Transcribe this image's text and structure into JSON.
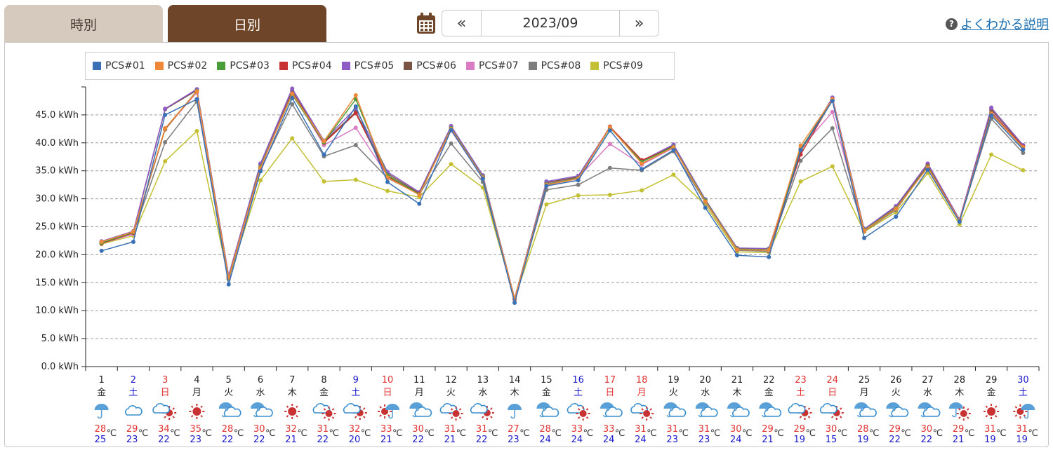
{
  "tabs": {
    "hourly": "時別",
    "daily": "日別"
  },
  "date_nav": {
    "prev": "«",
    "next": "»",
    "current": "2023/09"
  },
  "help": {
    "icon": "?",
    "label": "よくわかる説明"
  },
  "colors": {
    "accent_active_tab": "#6f4529",
    "inactive_tab": "#d6c9bd",
    "weekday": "#222222",
    "saturday": "#1a1acc",
    "holiday": "#e03030",
    "temp_high": "#e03030",
    "temp_low": "#1a1acc"
  },
  "chart_data": {
    "type": "line",
    "title": "",
    "xlabel": "",
    "ylabel": "",
    "ylim": [
      0,
      50
    ],
    "ytick_values": [
      0,
      5,
      10,
      15,
      20,
      25,
      30,
      35,
      40,
      45
    ],
    "ytick_labels": [
      "0.0 kWh",
      "5.0 kWh",
      "10.0 kWh",
      "15.0 kWh",
      "20.0 kWh",
      "25.0 kWh",
      "30.0 kWh",
      "35.0 kWh",
      "40.0 kWh",
      "45.0 kWh"
    ],
    "grid": true,
    "legend_position": "top-left",
    "categories": [
      "1",
      "2",
      "3",
      "4",
      "5",
      "6",
      "7",
      "8",
      "9",
      "10",
      "11",
      "12",
      "13",
      "14",
      "15",
      "16",
      "17",
      "18",
      "19",
      "20",
      "21",
      "22",
      "23",
      "24",
      "25",
      "26",
      "27",
      "28",
      "29",
      "30"
    ],
    "weekdays": [
      "金",
      "土",
      "日",
      "月",
      "火",
      "水",
      "木",
      "金",
      "土",
      "日",
      "月",
      "火",
      "水",
      "木",
      "金",
      "土",
      "日",
      "月",
      "火",
      "水",
      "木",
      "金",
      "土",
      "日",
      "月",
      "火",
      "水",
      "木",
      "金",
      "土"
    ],
    "day_types": [
      "w",
      "s",
      "h",
      "w",
      "w",
      "w",
      "w",
      "w",
      "s",
      "h",
      "w",
      "w",
      "w",
      "w",
      "w",
      "s",
      "h",
      "h",
      "w",
      "w",
      "w",
      "w",
      "h",
      "h",
      "w",
      "w",
      "w",
      "w",
      "w",
      "s"
    ],
    "weather": [
      "rain",
      "cloud",
      "sun-cloud",
      "sun",
      "cloud-rain",
      "cloud-rain",
      "sun",
      "cloud-sun",
      "sun-cloud",
      "sun-rain",
      "cloud-rain",
      "cloud-sun",
      "sun-cloud",
      "rain",
      "cloud-rain",
      "cloud-sun",
      "cloud-rain",
      "cloud-sun",
      "cloud-rain",
      "cloud-rain",
      "cloud-rain",
      "cloud-rain",
      "sun-cloud",
      "sun-cloud",
      "cloud-rain",
      "cloud-rain",
      "cloud-rain",
      "rain-sun",
      "sun",
      "sun-rain"
    ],
    "temp_high": [
      28,
      29,
      34,
      35,
      28,
      30,
      32,
      31,
      32,
      33,
      30,
      31,
      31,
      27,
      28,
      33,
      33,
      31,
      31,
      31,
      30,
      29,
      29,
      30,
      28,
      29,
      30,
      29,
      31,
      31
    ],
    "temp_low": [
      25,
      23,
      22,
      23,
      22,
      22,
      21,
      22,
      20,
      21,
      22,
      21,
      22,
      23,
      24,
      24,
      24,
      24,
      23,
      23,
      24,
      21,
      19,
      15,
      19,
      22,
      22,
      21,
      19,
      19
    ],
    "temp_unit": "℃",
    "series": [
      {
        "name": "PCS#01",
        "color": "#3a70b5",
        "values": [
          20.7,
          22.3,
          45.0,
          47.8,
          14.7,
          34.9,
          48.0,
          37.9,
          46.5,
          33.0,
          29.1,
          42.3,
          33.6,
          11.4,
          32.3,
          33.3,
          42.2,
          35.3,
          38.7,
          28.4,
          19.9,
          19.6,
          38.7,
          47.5,
          23.0,
          26.8,
          35.2,
          25.9,
          44.9,
          38.8
        ]
      },
      {
        "name": "PCS#02",
        "color": "#f0883a",
        "values": [
          22.3,
          24.1,
          42.6,
          49.2,
          15.9,
          35.5,
          48.8,
          40.3,
          48.5,
          33.8,
          30.7,
          42.5,
          33.8,
          12.1,
          32.5,
          33.6,
          42.8,
          36.3,
          39.2,
          29.5,
          20.9,
          20.8,
          39.5,
          47.8,
          24.3,
          28.2,
          35.6,
          26.1,
          45.2,
          39.2
        ]
      },
      {
        "name": "PCS#03",
        "color": "#4a9e3a",
        "values": [
          22.1,
          24.0,
          42.5,
          49.3,
          15.8,
          35.7,
          48.6,
          40.1,
          47.8,
          34.2,
          30.8,
          42.6,
          33.9,
          12.1,
          32.6,
          33.7,
          42.7,
          36.6,
          39.3,
          29.7,
          21.0,
          20.9,
          38.9,
          47.6,
          24.4,
          28.3,
          35.8,
          26.0,
          45.3,
          39.1
        ]
      },
      {
        "name": "PCS#04",
        "color": "#c83232",
        "values": [
          22.0,
          23.9,
          42.4,
          49.2,
          15.8,
          35.7,
          48.7,
          40.0,
          45.3,
          34.0,
          30.9,
          42.5,
          33.8,
          12.1,
          32.5,
          33.6,
          42.9,
          36.9,
          39.2,
          29.6,
          21.0,
          20.9,
          37.9,
          47.7,
          24.3,
          28.3,
          35.9,
          26.1,
          45.4,
          39.3
        ]
      },
      {
        "name": "PCS#05",
        "color": "#8e5cc4",
        "values": [
          22.4,
          24.2,
          46.1,
          49.6,
          16.3,
          36.3,
          49.7,
          40.4,
          46.2,
          34.8,
          31.2,
          43.0,
          34.2,
          12.2,
          33.1,
          34.1,
          42.8,
          36.8,
          39.7,
          29.9,
          21.2,
          21.1,
          38.7,
          48.1,
          24.6,
          28.7,
          36.3,
          26.3,
          46.3,
          39.6
        ]
      },
      {
        "name": "PCS#06",
        "color": "#7a5444",
        "values": [
          22.2,
          24.0,
          46.0,
          49.4,
          16.1,
          36.2,
          49.3,
          40.2,
          45.5,
          34.5,
          31.0,
          42.8,
          34.0,
          12.1,
          32.9,
          33.9,
          42.7,
          36.7,
          39.5,
          29.8,
          21.1,
          21.0,
          38.5,
          47.9,
          24.5,
          28.6,
          36.2,
          26.2,
          46.0,
          39.4
        ]
      },
      {
        "name": "PCS#07",
        "color": "#d97cc3",
        "values": [
          22.0,
          23.7,
          42.6,
          49.0,
          15.8,
          35.4,
          49.0,
          39.6,
          42.7,
          34.1,
          31.0,
          42.2,
          33.7,
          12.0,
          32.8,
          33.8,
          39.8,
          36.1,
          39.1,
          29.6,
          20.9,
          20.8,
          39.0,
          45.5,
          24.4,
          28.4,
          35.8,
          26.0,
          45.7,
          39.0
        ]
      },
      {
        "name": "PCS#08",
        "color": "#7d7d7d",
        "values": [
          22.1,
          23.8,
          40.1,
          47.4,
          15.7,
          35.2,
          46.9,
          37.6,
          39.6,
          33.7,
          30.8,
          39.9,
          33.0,
          11.9,
          31.6,
          32.5,
          35.5,
          35.1,
          38.5,
          29.4,
          20.8,
          20.6,
          36.8,
          42.6,
          24.2,
          28.0,
          35.9,
          25.9,
          44.3,
          38.2
        ]
      },
      {
        "name": "PCS#09",
        "color": "#c3c033",
        "values": [
          21.9,
          23.4,
          36.7,
          42.1,
          15.6,
          33.3,
          40.8,
          33.1,
          33.4,
          31.4,
          30.3,
          36.2,
          32.0,
          12.1,
          29.0,
          30.6,
          30.7,
          31.5,
          34.3,
          28.9,
          20.5,
          20.4,
          33.1,
          35.8,
          24.1,
          27.6,
          34.6,
          25.4,
          37.9,
          35.1
        ]
      }
    ]
  }
}
